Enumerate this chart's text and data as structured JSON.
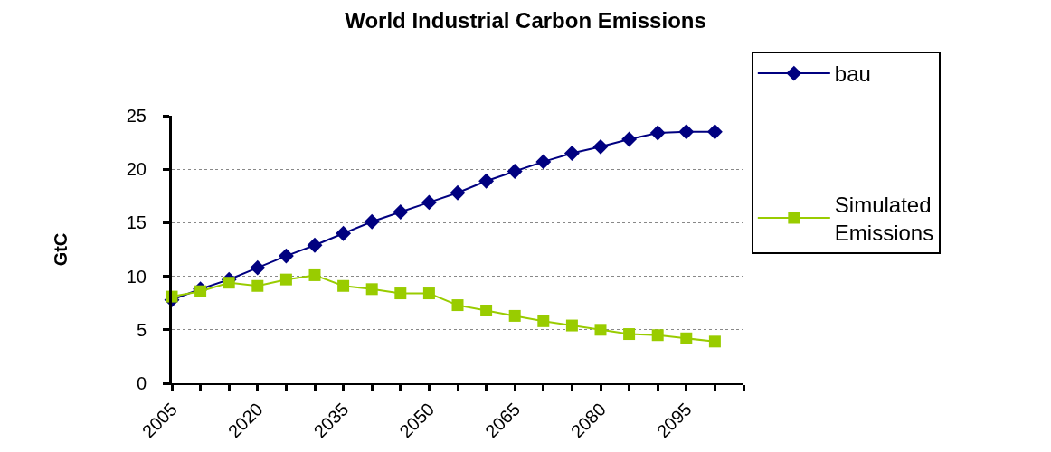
{
  "chart_data": {
    "type": "line",
    "title": "World Industrial Carbon Emissions",
    "ylabel": "GtC",
    "x": [
      2005,
      2010,
      2015,
      2020,
      2025,
      2030,
      2035,
      2040,
      2045,
      2050,
      2055,
      2060,
      2065,
      2070,
      2075,
      2080,
      2085,
      2090,
      2095,
      2100
    ],
    "xlim": [
      2005,
      2105
    ],
    "xticks": [
      2005,
      {
        "value": 2010,
        "label": null
      },
      {
        "value": 2015,
        "label": null
      },
      2020,
      {
        "value": 2025,
        "label": null
      },
      {
        "value": 2030,
        "label": null
      },
      2035,
      {
        "value": 2040,
        "label": null
      },
      {
        "value": 2045,
        "label": null
      },
      2050,
      {
        "value": 2055,
        "label": null
      },
      {
        "value": 2060,
        "label": null
      },
      2065,
      {
        "value": 2070,
        "label": null
      },
      {
        "value": 2075,
        "label": null
      },
      2080,
      {
        "value": 2085,
        "label": null
      },
      {
        "value": 2090,
        "label": null
      },
      2095,
      {
        "value": 2100,
        "label": null
      },
      {
        "value": 2105,
        "label": null
      }
    ],
    "ylim": [
      0,
      25
    ],
    "yticks": [
      0,
      5,
      10,
      15,
      20,
      25
    ],
    "grid": "y",
    "legend": "right",
    "series": [
      {
        "name": "bau",
        "color": "#000080",
        "marker": "diamond",
        "values": [
          7.8,
          8.8,
          9.7,
          10.8,
          11.9,
          12.9,
          14.0,
          15.1,
          16.0,
          16.9,
          17.8,
          18.9,
          19.8,
          20.7,
          21.5,
          22.1,
          22.8,
          23.4,
          23.5,
          23.5
        ]
      },
      {
        "name": "Simulated Emissions",
        "color": "#99cc00",
        "marker": "square",
        "values": [
          8.1,
          8.6,
          9.4,
          9.1,
          9.7,
          10.1,
          9.1,
          8.8,
          8.4,
          8.4,
          7.3,
          6.8,
          6.3,
          5.8,
          5.4,
          5.0,
          4.6,
          4.5,
          4.2,
          3.9
        ]
      }
    ]
  }
}
